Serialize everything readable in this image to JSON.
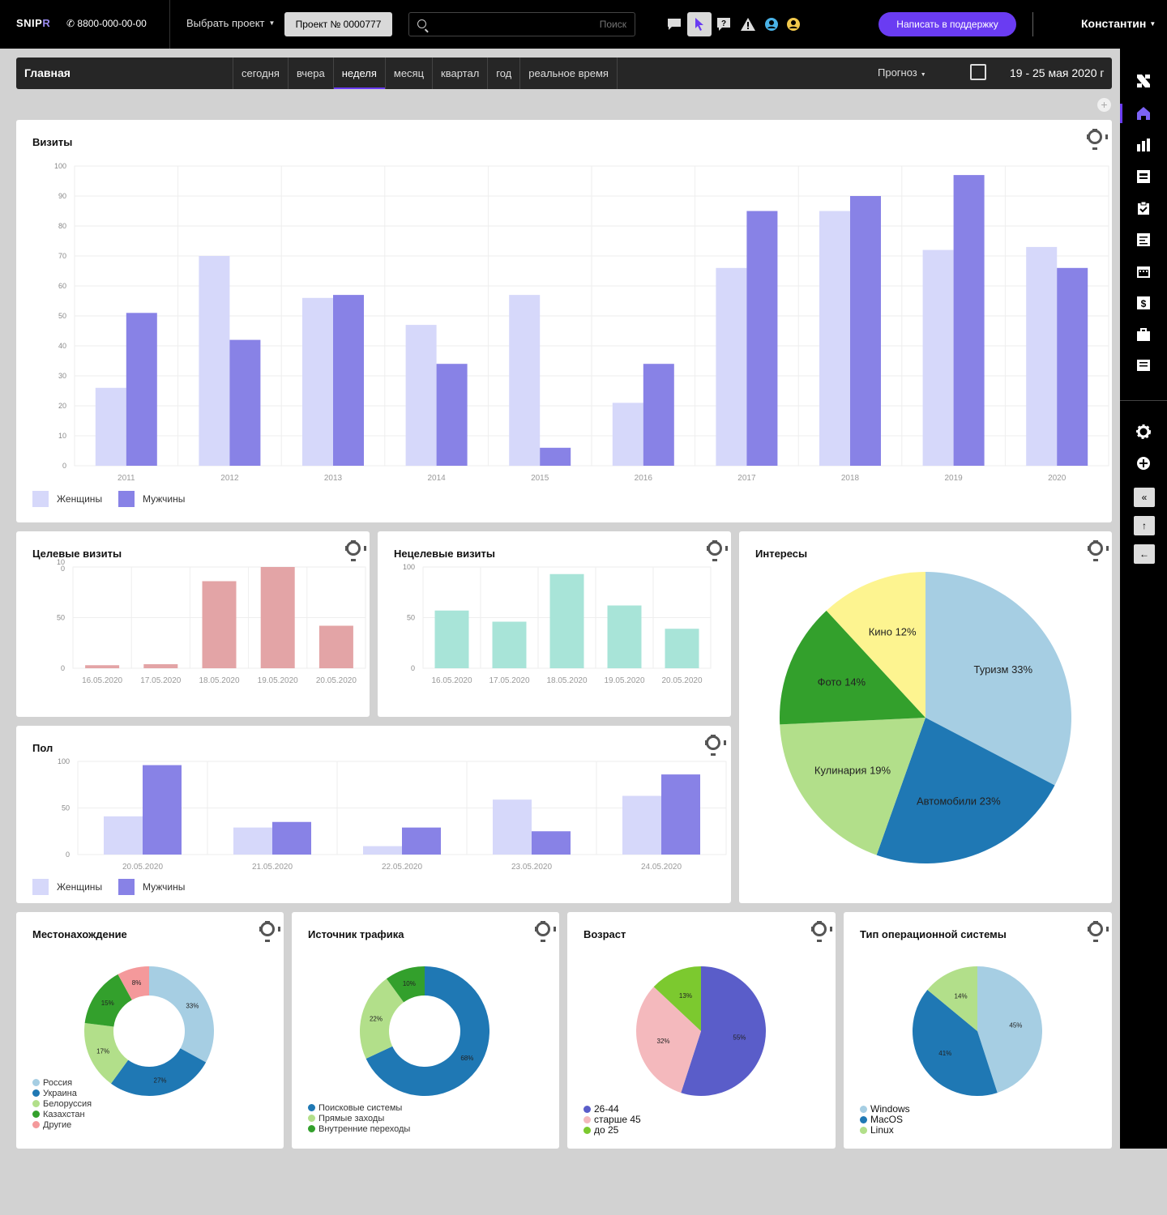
{
  "topbar": {
    "logo_a": "SNIP",
    "logo_b": "R",
    "phone": "8800-000-00-00",
    "project_select": "Выбрать проект",
    "project_button": "Проект № 0000777",
    "search_placeholder": "Поиск",
    "support_button": "Написать в поддержку",
    "user": "Константин"
  },
  "nav": {
    "title": "Главная",
    "tabs": [
      "сегодня",
      "вчера",
      "неделя",
      "месяц",
      "квартал",
      "год",
      "реальное время"
    ],
    "active_tab": "неделя",
    "forecast": "Прогноз",
    "date_range": "19 - 25 мая 2020 г"
  },
  "colors": {
    "light": "#d6d8fa",
    "dark": "#8882e6",
    "red": "#e3a4a6",
    "teal": "#a8e4d8"
  },
  "visits": {
    "title": "Визиты",
    "legend": [
      "Женщины",
      "Мужчины"
    ]
  },
  "target": {
    "title": "Целевые визиты"
  },
  "nontarget": {
    "title": "Нецелевые визиты"
  },
  "gender": {
    "title": "Пол",
    "legend": [
      "Женщины",
      "Мужчины"
    ]
  },
  "interests": {
    "title": "Интересы"
  },
  "location": {
    "title": "Местонахождение"
  },
  "traffic": {
    "title": "Источник трафика"
  },
  "age": {
    "title": "Возраст"
  },
  "os": {
    "title": "Тип операционной системы"
  },
  "chart_data": [
    {
      "id": "visits",
      "type": "bar",
      "title": "Визиты",
      "categories": [
        "2011",
        "2012",
        "2013",
        "2014",
        "2015",
        "2016",
        "2017",
        "2018",
        "2019",
        "2020"
      ],
      "series": [
        {
          "name": "Женщины",
          "color": "#d6d8fa",
          "values": [
            26,
            70,
            56,
            47,
            57,
            21,
            66,
            85,
            72,
            73
          ]
        },
        {
          "name": "Мужчины",
          "color": "#8882e6",
          "values": [
            51,
            42,
            57,
            34,
            6,
            34,
            85,
            90,
            97,
            66
          ]
        }
      ],
      "ylim": [
        0,
        100
      ],
      "yticks": [
        0,
        10,
        20,
        30,
        40,
        50,
        60,
        70,
        80,
        90,
        100
      ],
      "legend": "bottom-left"
    },
    {
      "id": "target",
      "type": "bar",
      "title": "Целевые визиты",
      "categories": [
        "16.05.2020",
        "17.05.2020",
        "18.05.2020",
        "19.05.2020",
        "20.05.2020"
      ],
      "series": [
        {
          "color": "#e3a4a6",
          "values": [
            3,
            4,
            86,
            100,
            42
          ]
        }
      ],
      "ylim": [
        0,
        100
      ],
      "yticks": [
        "0",
        "50",
        "10\n0"
      ]
    },
    {
      "id": "nontarget",
      "type": "bar",
      "title": "Нецелевые визиты",
      "categories": [
        "16.05.2020",
        "17.05.2020",
        "18.05.2020",
        "19.05.2020",
        "20.05.2020"
      ],
      "series": [
        {
          "color": "#a8e4d8",
          "values": [
            57,
            46,
            93,
            62,
            39
          ]
        }
      ],
      "ylim": [
        0,
        100
      ],
      "yticks": [
        "0",
        "50",
        "100"
      ]
    },
    {
      "id": "gender",
      "type": "bar",
      "title": "Пол",
      "categories": [
        "20.05.2020",
        "21.05.2020",
        "22.05.2020",
        "23.05.2020",
        "24.05.2020"
      ],
      "series": [
        {
          "name": "Женщины",
          "color": "#d6d8fa",
          "values": [
            41,
            29,
            9,
            59,
            63
          ]
        },
        {
          "name": "Мужчины",
          "color": "#8882e6",
          "values": [
            96,
            35,
            29,
            25,
            86
          ]
        }
      ],
      "ylim": [
        0,
        100
      ],
      "yticks": [
        "0",
        "50",
        "100"
      ],
      "legend": "bottom-left"
    },
    {
      "id": "interests",
      "type": "pie",
      "title": "Интересы",
      "slices": [
        {
          "label": "Туризм 33%",
          "value": 33,
          "color": "#a6cee3"
        },
        {
          "label": "Автомобили 23%",
          "value": 23,
          "color": "#1f78b4"
        },
        {
          "label": "Кулинария 19%",
          "value": 19,
          "color": "#b2df8a"
        },
        {
          "label": "Фото 14%",
          "value": 14,
          "color": "#33a02c"
        },
        {
          "label": "Кино 12%",
          "value": 12,
          "color": "#fdf490"
        }
      ]
    },
    {
      "id": "location",
      "type": "pie",
      "donut": true,
      "title": "Местонахождение",
      "slices": [
        {
          "label": "Россия",
          "value": 33,
          "color": "#a6cee3"
        },
        {
          "label": "Украина",
          "value": 27,
          "color": "#1f78b4"
        },
        {
          "label": "Белоруссия",
          "value": 17,
          "color": "#b2df8a"
        },
        {
          "label": "Казахстан",
          "value": 15,
          "color": "#33a02c"
        },
        {
          "label": "Другие",
          "value": 8,
          "color": "#f4999b"
        }
      ]
    },
    {
      "id": "traffic",
      "type": "pie",
      "donut": true,
      "title": "Источник трафика",
      "slices": [
        {
          "label": "Поисковые системы",
          "value": 68,
          "color": "#1f78b4"
        },
        {
          "label": "Прямые заходы",
          "value": 22,
          "color": "#b2df8a"
        },
        {
          "label": "Внутренние переходы",
          "value": 10,
          "color": "#33a02c"
        }
      ]
    },
    {
      "id": "age",
      "type": "pie",
      "title": "Возраст",
      "slices": [
        {
          "label": "26-44",
          "value": 55,
          "color": "#5a5dc9"
        },
        {
          "label": "старше 45",
          "value": 32,
          "color": "#f4b9bd"
        },
        {
          "label": "до 25",
          "value": 13,
          "color": "#7cc92f"
        }
      ]
    },
    {
      "id": "os",
      "type": "pie",
      "title": "Тип операционной системы",
      "slices": [
        {
          "label": "Windows",
          "value": 45,
          "color": "#a6cee3"
        },
        {
          "label": "MacOS",
          "value": 41,
          "color": "#1f78b4"
        },
        {
          "label": "Linux",
          "value": 14,
          "color": "#b2df8a"
        }
      ]
    }
  ]
}
